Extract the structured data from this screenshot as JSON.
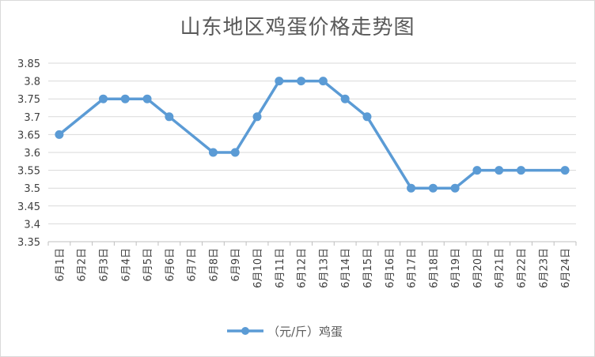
{
  "chart_data": {
    "type": "line",
    "title": "山东地区鸡蛋价格走势图",
    "categories": [
      "6月1日",
      "6月2日",
      "6月3日",
      "6月4日",
      "6月5日",
      "6月6日",
      "6月7日",
      "6月8日",
      "6月9日",
      "6月10日",
      "6月11日",
      "6月12日",
      "6月13日",
      "6月14日",
      "6月15日",
      "6月16日",
      "6月17日",
      "6月18日",
      "6月19日",
      "6月20日",
      "6月21日",
      "6月22日",
      "6月23日",
      "6月24日"
    ],
    "series": [
      {
        "name": "（元/斤）鸡蛋",
        "color": "#5b9bd5",
        "values": [
          3.65,
          null,
          3.75,
          3.75,
          3.75,
          3.7,
          null,
          3.6,
          3.6,
          3.7,
          3.8,
          3.8,
          3.8,
          3.75,
          3.7,
          null,
          3.5,
          3.5,
          3.5,
          3.55,
          3.55,
          3.55,
          null,
          3.55
        ]
      }
    ],
    "y_ticks": [
      "3.85",
      "3.8",
      "3.75",
      "3.7",
      "3.65",
      "3.6",
      "3.55",
      "3.5",
      "3.45",
      "3.4",
      "3.35"
    ],
    "ylim": [
      3.35,
      3.85
    ],
    "xlabel": "",
    "ylabel": "",
    "grid": true,
    "legend": "bottom"
  }
}
